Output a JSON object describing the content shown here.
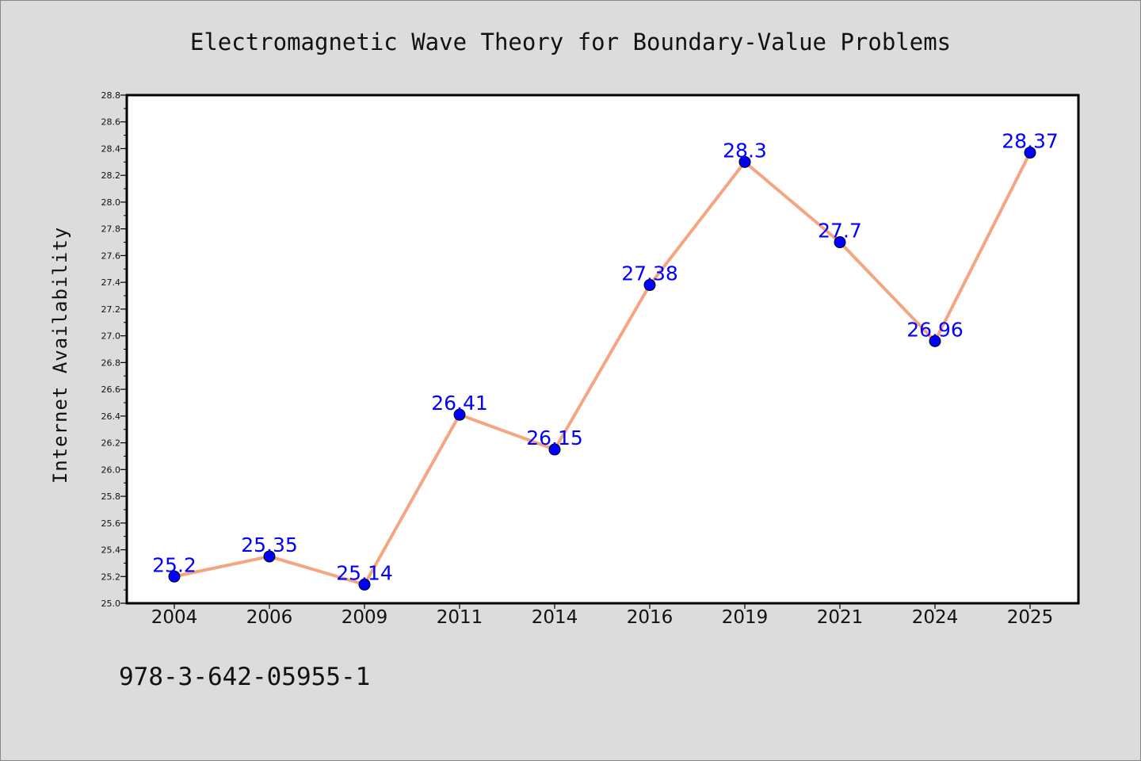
{
  "chart_data": {
    "type": "line",
    "title": "Electromagnetic Wave Theory for Boundary-Value Problems",
    "xlabel": "",
    "ylabel": "Internet Availability",
    "categories": [
      "2004",
      "2006",
      "2009",
      "2011",
      "2014",
      "2016",
      "2019",
      "2021",
      "2024",
      "2025"
    ],
    "series": [
      {
        "values": [
          25.2,
          25.35,
          25.14,
          26.41,
          26.15,
          27.38,
          28.3,
          27.7,
          26.96,
          28.37
        ],
        "labels": [
          "25.2",
          "25.35",
          "25.14",
          "26.41",
          "26.15",
          "27.38",
          "28.3",
          "27.7",
          "26.96",
          "28.37"
        ],
        "line_color": "#f4a582",
        "marker_color": "#0000ff"
      }
    ],
    "ylim": [
      25.0,
      28.8
    ],
    "yticks": [
      "25.0",
      "25.2",
      "25.4",
      "25.6",
      "25.8",
      "26.0",
      "26.2",
      "26.4",
      "26.6",
      "26.8",
      "27.0",
      "27.2",
      "27.4",
      "27.6",
      "27.8",
      "28.0",
      "28.2",
      "28.4",
      "28.6",
      "28.8"
    ],
    "grid": false,
    "label_color": "#0000ff"
  },
  "footer": {
    "isbn": "978-3-642-05955-1"
  },
  "colors": {
    "background": "#dcdcdc",
    "plot_background": "#ffffff",
    "axis": "#000000"
  }
}
